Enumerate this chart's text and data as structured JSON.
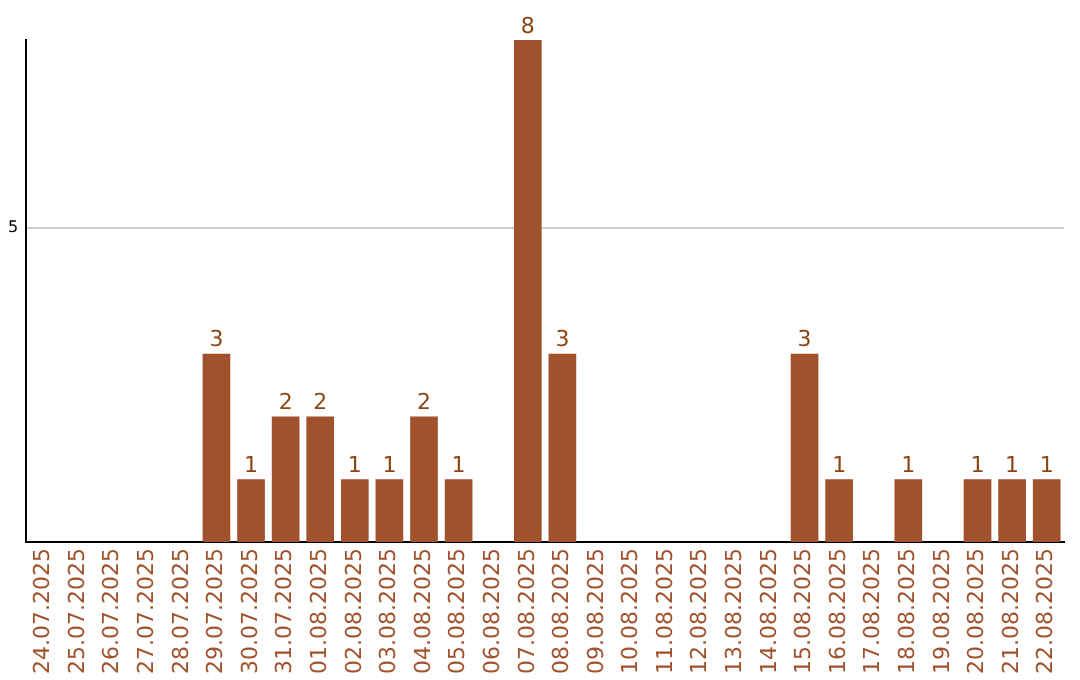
{
  "chart_data": {
    "type": "bar",
    "categories": [
      "24.07.2025",
      "25.07.2025",
      "26.07.2025",
      "27.07.2025",
      "28.07.2025",
      "29.07.2025",
      "30.07.2025",
      "31.07.2025",
      "01.08.2025",
      "02.08.2025",
      "03.08.2025",
      "04.08.2025",
      "05.08.2025",
      "06.08.2025",
      "07.08.2025",
      "08.08.2025",
      "09.08.2025",
      "10.08.2025",
      "11.08.2025",
      "12.08.2025",
      "13.08.2025",
      "14.08.2025",
      "15.08.2025",
      "16.08.2025",
      "17.08.2025",
      "18.08.2025",
      "19.08.2025",
      "20.08.2025",
      "21.08.2025",
      "22.08.2025"
    ],
    "values": [
      0,
      0,
      0,
      0,
      0,
      3,
      1,
      2,
      2,
      1,
      1,
      2,
      1,
      0,
      8,
      3,
      0,
      0,
      0,
      0,
      0,
      0,
      3,
      1,
      0,
      1,
      0,
      1,
      1,
      1
    ],
    "value_labels": [
      null,
      null,
      null,
      null,
      null,
      "3",
      "1",
      "2",
      "2",
      "1",
      "1",
      "2",
      "1",
      null,
      "8",
      "3",
      null,
      null,
      null,
      null,
      null,
      null,
      "3",
      "1",
      null,
      "1",
      null,
      "1",
      "1",
      "1"
    ],
    "color": "#a0522d",
    "ylim": [
      0,
      8
    ],
    "yticks": [
      5
    ],
    "grid": "y",
    "legend": false
  }
}
